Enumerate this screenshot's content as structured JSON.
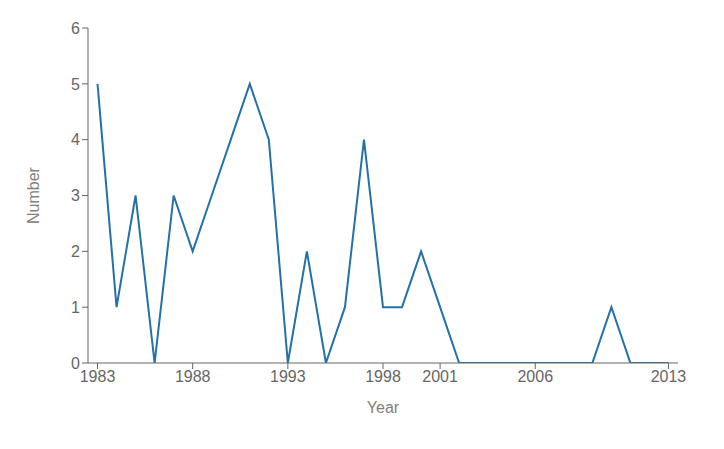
{
  "chart_data": {
    "type": "line",
    "x": [
      1983,
      1984,
      1985,
      1986,
      1987,
      1988,
      1989,
      1990,
      1991,
      1992,
      1993,
      1994,
      1995,
      1996,
      1997,
      1998,
      1999,
      2000,
      2001,
      2002,
      2003,
      2004,
      2005,
      2006,
      2007,
      2008,
      2009,
      2010,
      2011,
      2012,
      2013
    ],
    "values": [
      5,
      1,
      3,
      0,
      3,
      2,
      3,
      4,
      5,
      4,
      0,
      2,
      0,
      1,
      4,
      1,
      1,
      2,
      1,
      0,
      0,
      0,
      0,
      0,
      0,
      0,
      0,
      1,
      0,
      0,
      0
    ],
    "color": "#2471a8",
    "xlabel": "Year",
    "ylabel": "Number",
    "xlim": [
      1982.5,
      2013.5
    ],
    "ylim": [
      0,
      6
    ],
    "xticks": [
      1983,
      1988,
      1993,
      1998,
      2001,
      2006,
      2013
    ],
    "yticks": [
      0,
      1,
      2,
      3,
      4,
      5,
      6
    ],
    "grid": false
  }
}
